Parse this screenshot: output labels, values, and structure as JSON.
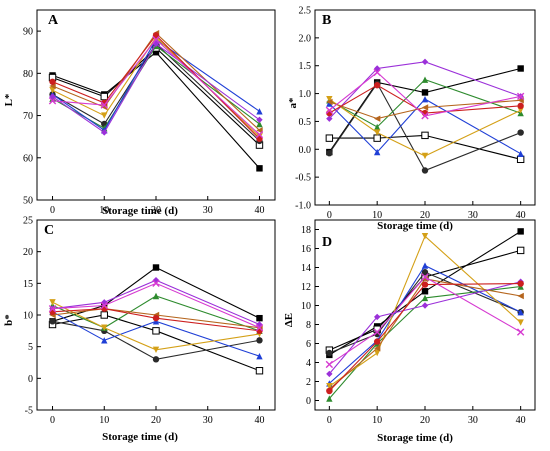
{
  "chart_data": [
    {
      "type": "line",
      "panel": "A",
      "x": [
        0,
        10,
        20,
        40
      ],
      "xlabel": "Storage time (d)",
      "ylabel": "L*",
      "xlim": [
        -3,
        43
      ],
      "ylim": [
        50,
        95
      ],
      "xticks": [
        0,
        10,
        20,
        30,
        40
      ],
      "yticks": [
        50,
        60,
        70,
        80,
        90
      ],
      "series": [
        {
          "values": [
            79.5,
            75.0,
            85.0,
            57.5
          ],
          "color": "#000000",
          "marker": "square"
        },
        {
          "values": [
            79.0,
            74.5,
            86.0,
            63.0
          ],
          "color": "#000000",
          "marker": "square-open"
        },
        {
          "values": [
            75.0,
            68.0,
            87.0,
            64.0
          ],
          "color": "#2a2a2a",
          "marker": "circle"
        },
        {
          "values": [
            74.0,
            67.0,
            86.5,
            68.0
          ],
          "color": "#2e8b2e",
          "marker": "triangle"
        },
        {
          "values": [
            75.0,
            66.5,
            88.0,
            71.0
          ],
          "color": "#1f3fd6",
          "marker": "triangle"
        },
        {
          "values": [
            76.0,
            70.0,
            88.5,
            65.0
          ],
          "color": "#d4a017",
          "marker": "triangle-down"
        },
        {
          "values": [
            77.0,
            72.0,
            89.5,
            66.5
          ],
          "color": "#b5651d",
          "marker": "triangle-left"
        },
        {
          "values": [
            74.5,
            66.0,
            87.0,
            69.0
          ],
          "color": "#9b30d9",
          "marker": "diamond"
        },
        {
          "values": [
            78.0,
            73.0,
            89.0,
            64.5
          ],
          "color": "#cc1f1f",
          "marker": "circle"
        },
        {
          "values": [
            73.5,
            72.5,
            88.0,
            65.5
          ],
          "color": "#d63ad1",
          "marker": "star"
        }
      ]
    },
    {
      "type": "line",
      "panel": "B",
      "x": [
        0,
        10,
        20,
        40
      ],
      "xlabel": "Storage time (d)",
      "ylabel": "a*",
      "xlim": [
        -3,
        43
      ],
      "ylim": [
        -1.0,
        2.5
      ],
      "xticks": [
        0,
        10,
        20,
        30,
        40
      ],
      "yticks": [
        "-1.0",
        "-0.5",
        "0.0",
        "0.5",
        "1.0",
        "1.5",
        "2.0",
        "2.5"
      ],
      "series": [
        {
          "values": [
            -0.05,
            1.2,
            1.02,
            1.45
          ],
          "color": "#000000",
          "marker": "square"
        },
        {
          "values": [
            0.2,
            0.2,
            0.25,
            -0.18
          ],
          "color": "#000000",
          "marker": "square-open"
        },
        {
          "values": [
            -0.07,
            1.18,
            -0.38,
            0.3
          ],
          "color": "#2a2a2a",
          "marker": "circle"
        },
        {
          "values": [
            0.88,
            0.4,
            1.25,
            0.65
          ],
          "color": "#2e8b2e",
          "marker": "triangle"
        },
        {
          "values": [
            0.82,
            -0.05,
            0.9,
            -0.08
          ],
          "color": "#1f3fd6",
          "marker": "triangle"
        },
        {
          "values": [
            0.9,
            0.3,
            -0.12,
            0.7
          ],
          "color": "#d4a017",
          "marker": "triangle-down"
        },
        {
          "values": [
            0.85,
            0.55,
            0.75,
            0.88
          ],
          "color": "#b5651d",
          "marker": "triangle-left"
        },
        {
          "values": [
            0.55,
            1.45,
            1.57,
            0.95
          ],
          "color": "#9b30d9",
          "marker": "diamond"
        },
        {
          "values": [
            0.65,
            1.15,
            0.65,
            0.78
          ],
          "color": "#cc1f1f",
          "marker": "circle"
        },
        {
          "values": [
            0.7,
            1.38,
            0.6,
            0.95
          ],
          "color": "#d63ad1",
          "marker": "star"
        }
      ]
    },
    {
      "type": "line",
      "panel": "C",
      "x": [
        0,
        10,
        20,
        40
      ],
      "xlabel": "Storage time (d)",
      "ylabel": "b*",
      "xlim": [
        -3,
        43
      ],
      "ylim": [
        -5,
        25
      ],
      "xticks": [
        0,
        10,
        20,
        30,
        40
      ],
      "yticks": [
        -5,
        0,
        5,
        10,
        15,
        20,
        25
      ],
      "series": [
        {
          "values": [
            9.0,
            11.5,
            17.5,
            9.5
          ],
          "color": "#000000",
          "marker": "square"
        },
        {
          "values": [
            8.5,
            10.0,
            7.5,
            1.2
          ],
          "color": "#000000",
          "marker": "square-open"
        },
        {
          "values": [
            9.0,
            7.5,
            3.0,
            6.0
          ],
          "color": "#2a2a2a",
          "marker": "circle"
        },
        {
          "values": [
            11.5,
            8.0,
            13.0,
            7.5
          ],
          "color": "#2e8b2e",
          "marker": "triangle"
        },
        {
          "values": [
            10.5,
            6.0,
            9.0,
            3.5
          ],
          "color": "#1f3fd6",
          "marker": "triangle"
        },
        {
          "values": [
            12.0,
            8.0,
            4.5,
            7.0
          ],
          "color": "#d4a017",
          "marker": "triangle-down"
        },
        {
          "values": [
            10.0,
            11.0,
            10.0,
            8.0
          ],
          "color": "#b5651d",
          "marker": "triangle-left"
        },
        {
          "values": [
            11.0,
            12.0,
            15.5,
            8.5
          ],
          "color": "#9b30d9",
          "marker": "diamond"
        },
        {
          "values": [
            10.5,
            11.0,
            9.5,
            7.5
          ],
          "color": "#cc1f1f",
          "marker": "circle"
        },
        {
          "values": [
            11.0,
            11.5,
            15.0,
            8.0
          ],
          "color": "#d63ad1",
          "marker": "star"
        }
      ]
    },
    {
      "type": "line",
      "panel": "D",
      "x": [
        0,
        10,
        20,
        40
      ],
      "xlabel": "Storage time (d)",
      "ylabel": "ΔE",
      "xlim": [
        -3,
        43
      ],
      "ylim": [
        -1,
        19
      ],
      "xticks": [
        0,
        10,
        20,
        30,
        40
      ],
      "yticks": [
        0,
        2,
        4,
        6,
        8,
        10,
        12,
        14,
        16,
        18
      ],
      "series": [
        {
          "values": [
            4.8,
            7.8,
            11.5,
            17.8
          ],
          "color": "#000000",
          "marker": "square"
        },
        {
          "values": [
            5.3,
            7.5,
            13.0,
            15.8
          ],
          "color": "#000000",
          "marker": "square-open"
        },
        {
          "values": [
            5.0,
            7.0,
            13.5,
            9.3
          ],
          "color": "#2a2a2a",
          "marker": "circle"
        },
        {
          "values": [
            0.2,
            6.0,
            10.8,
            12.0
          ],
          "color": "#2e8b2e",
          "marker": "triangle"
        },
        {
          "values": [
            1.8,
            6.3,
            14.2,
            9.3
          ],
          "color": "#1f3fd6",
          "marker": "triangle"
        },
        {
          "values": [
            1.5,
            5.0,
            17.3,
            8.2
          ],
          "color": "#d4a017",
          "marker": "triangle-down"
        },
        {
          "values": [
            1.2,
            5.5,
            12.8,
            11.0
          ],
          "color": "#b5651d",
          "marker": "triangle-left"
        },
        {
          "values": [
            2.8,
            8.8,
            10.0,
            12.5
          ],
          "color": "#9b30d9",
          "marker": "diamond"
        },
        {
          "values": [
            1.0,
            6.2,
            12.2,
            12.3
          ],
          "color": "#cc1f1f",
          "marker": "circle"
        },
        {
          "values": [
            3.8,
            7.2,
            13.0,
            7.2
          ],
          "color": "#d63ad1",
          "marker": "star"
        }
      ]
    }
  ]
}
